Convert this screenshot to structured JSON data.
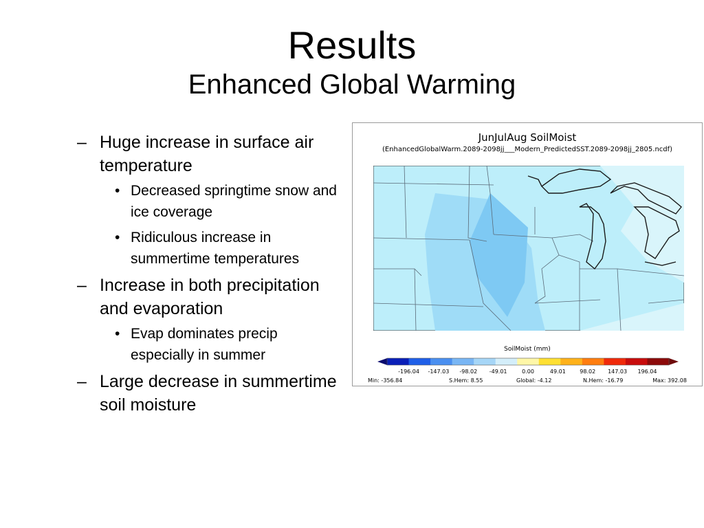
{
  "slide": {
    "title": "Results",
    "subtitle": "Enhanced Global Warming"
  },
  "bullets": [
    {
      "marker": "–",
      "text": "Huge increase in surface air temperature",
      "subitems": [
        {
          "marker": "•",
          "text": "Decreased springtime snow and ice coverage"
        },
        {
          "marker": "•",
          "text": "Ridiculous increase in summertime temperatures"
        }
      ]
    },
    {
      "marker": "–",
      "text": "Increase in both precipitation and evaporation",
      "subitems": [
        {
          "marker": "•",
          "text": "Evap dominates precip especially in summer"
        }
      ]
    },
    {
      "marker": "–",
      "text": "Large decrease in summertime soil moisture",
      "subitems": []
    }
  ],
  "figure": {
    "title": "JunJulAug SoilMoist",
    "subtitle": "(EnhancedGlobalWarm.2089-2098jj___Modern_PredictedSST.2089-2098jj_2805.ncdf)",
    "colorbar_title": "SoilMoist (mm)",
    "colorbar": {
      "colors": [
        "#0a1fb8",
        "#1f5fe8",
        "#4a8ff0",
        "#79b6f4",
        "#a6d6f7",
        "#d4eefa",
        "#fff7a8",
        "#ffe033",
        "#ffb21a",
        "#ff7d0f",
        "#f02a0a",
        "#c80c0c",
        "#8c0a0a"
      ],
      "low_arrow_color": "#0b0b6e",
      "high_arrow_color": "#6e0b0b",
      "ticks": [
        "-196.04",
        "-147.03",
        "-98.02",
        "-49.01",
        "0.00",
        "49.01",
        "98.02",
        "147.03",
        "196.04"
      ]
    },
    "stats": {
      "min": "Min: -356.84",
      "shem": "S.Hem: 8.55",
      "global": "Global: -4.12",
      "nhem": "N.Hem: -16.79",
      "max": "Max: 392.08"
    },
    "map_colors": {
      "base": "#bdeefa",
      "light": "#d9f5fb",
      "mid": "#9fdcf7",
      "dark": "#7ec9f3",
      "lines": "#5a6a78",
      "coast": "#1a1a1a"
    }
  }
}
